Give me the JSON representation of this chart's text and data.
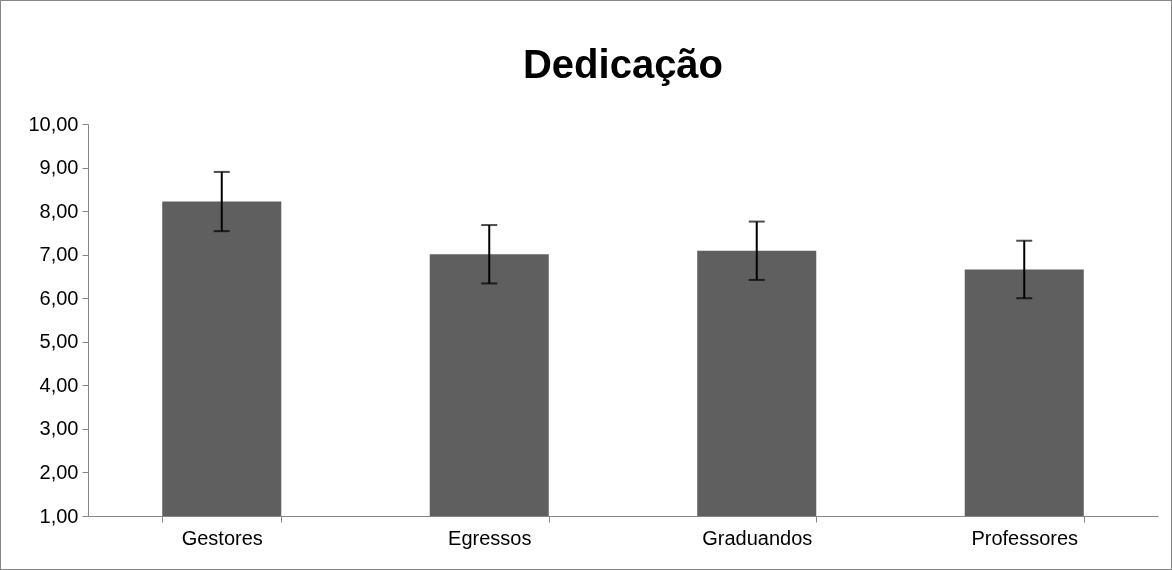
{
  "chart_data": {
    "type": "bar",
    "title": "Dedicação",
    "categories": [
      "Gestores",
      "Egressos",
      "Graduandos",
      "Professores"
    ],
    "values": [
      8.22,
      7.01,
      7.09,
      6.66
    ],
    "errors": [
      0.68,
      0.67,
      0.67,
      0.66
    ],
    "color": "#5f5f5f",
    "ylim": [
      1,
      10
    ],
    "yticks": [
      {
        "value": 1,
        "label": "1,00"
      },
      {
        "value": 2,
        "label": "2,00"
      },
      {
        "value": 3,
        "label": "3,00"
      },
      {
        "value": 4,
        "label": "4,00"
      },
      {
        "value": 5,
        "label": "5,00"
      },
      {
        "value": 6,
        "label": "6,00"
      },
      {
        "value": 7,
        "label": "7,00"
      },
      {
        "value": 8,
        "label": "8,00"
      },
      {
        "value": 9,
        "label": "9,00"
      },
      {
        "value": 10,
        "label": "10,00"
      }
    ],
    "grid": false
  }
}
